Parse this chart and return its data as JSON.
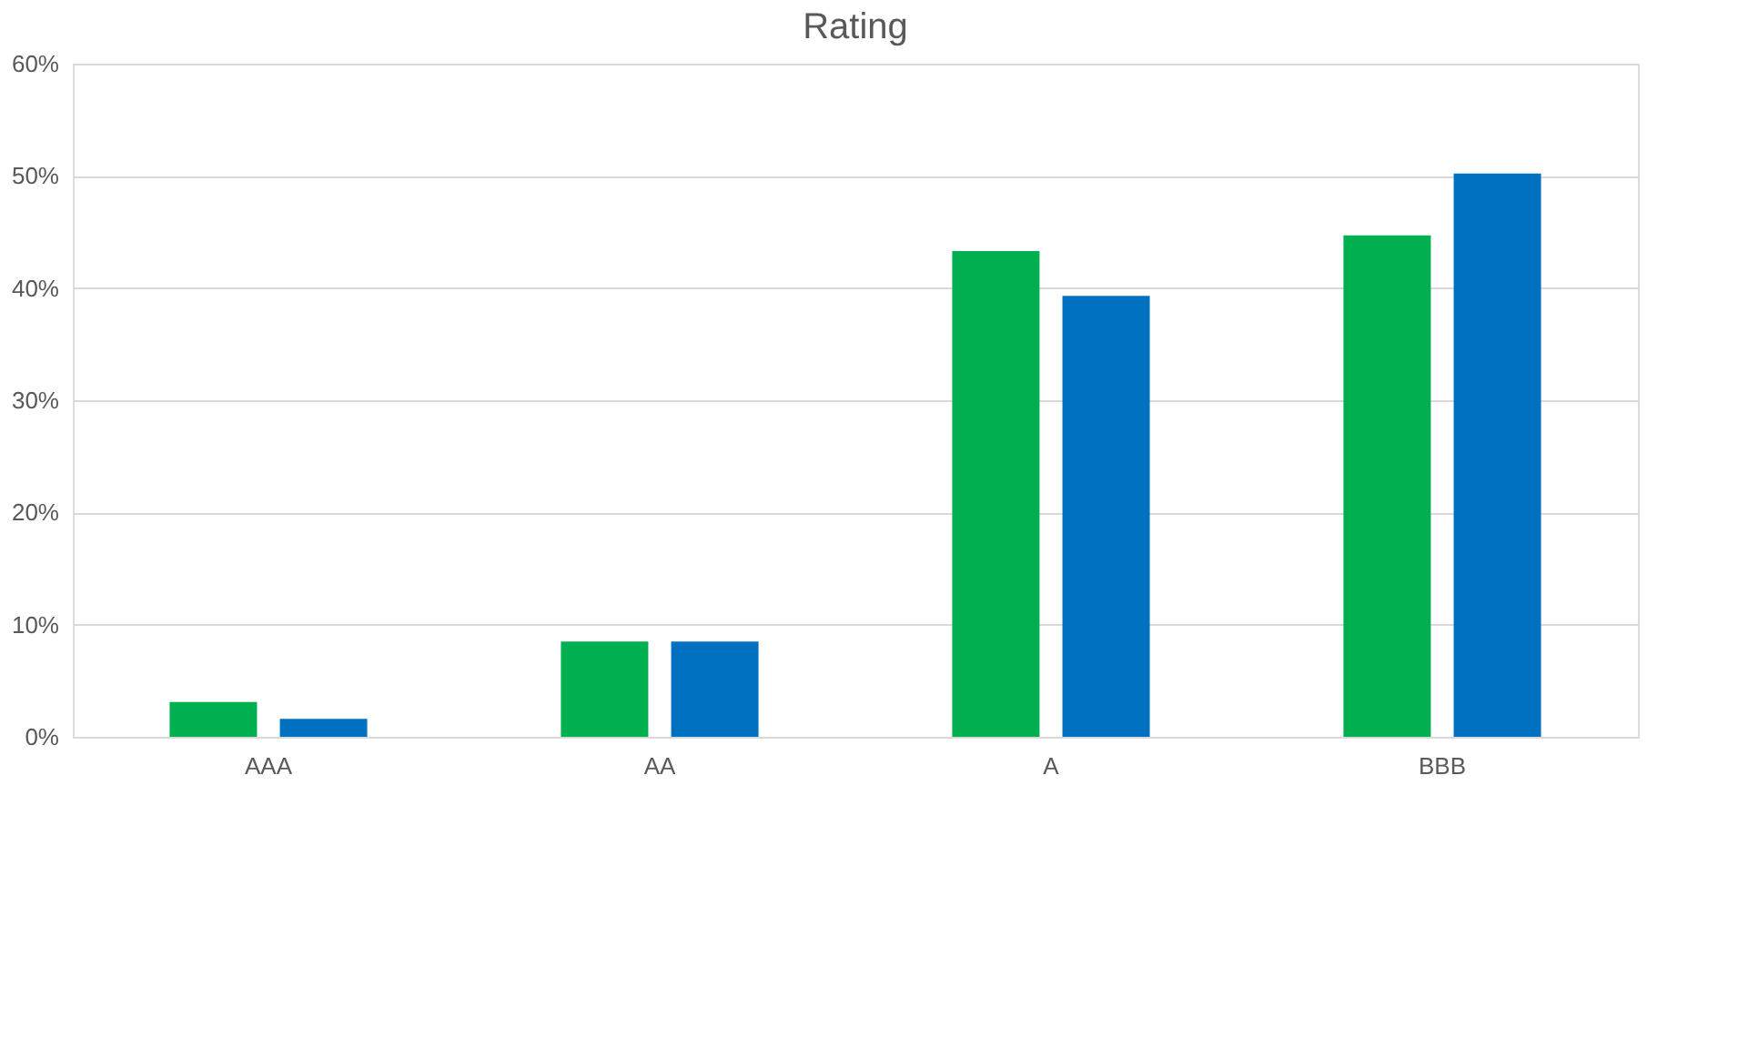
{
  "chart_data": {
    "type": "bar",
    "title": "Rating",
    "categories": [
      "AAA",
      "AA",
      "A",
      "BBB"
    ],
    "series": [
      {
        "color": "#00b050",
        "values": [
          3.1,
          8.5,
          43.3,
          44.7
        ]
      },
      {
        "color": "#0070c0",
        "values": [
          1.6,
          8.5,
          39.3,
          50.2
        ]
      }
    ],
    "ylim": [
      0,
      60
    ],
    "yticks": [
      {
        "value": 0,
        "label": "0%"
      },
      {
        "value": 10,
        "label": "10%"
      },
      {
        "value": 20,
        "label": "20%"
      },
      {
        "value": 30,
        "label": "30%"
      },
      {
        "value": 40,
        "label": "40%"
      },
      {
        "value": 50,
        "label": "50%"
      },
      {
        "value": 60,
        "label": "60%"
      }
    ],
    "grid": "y",
    "legend": false
  }
}
